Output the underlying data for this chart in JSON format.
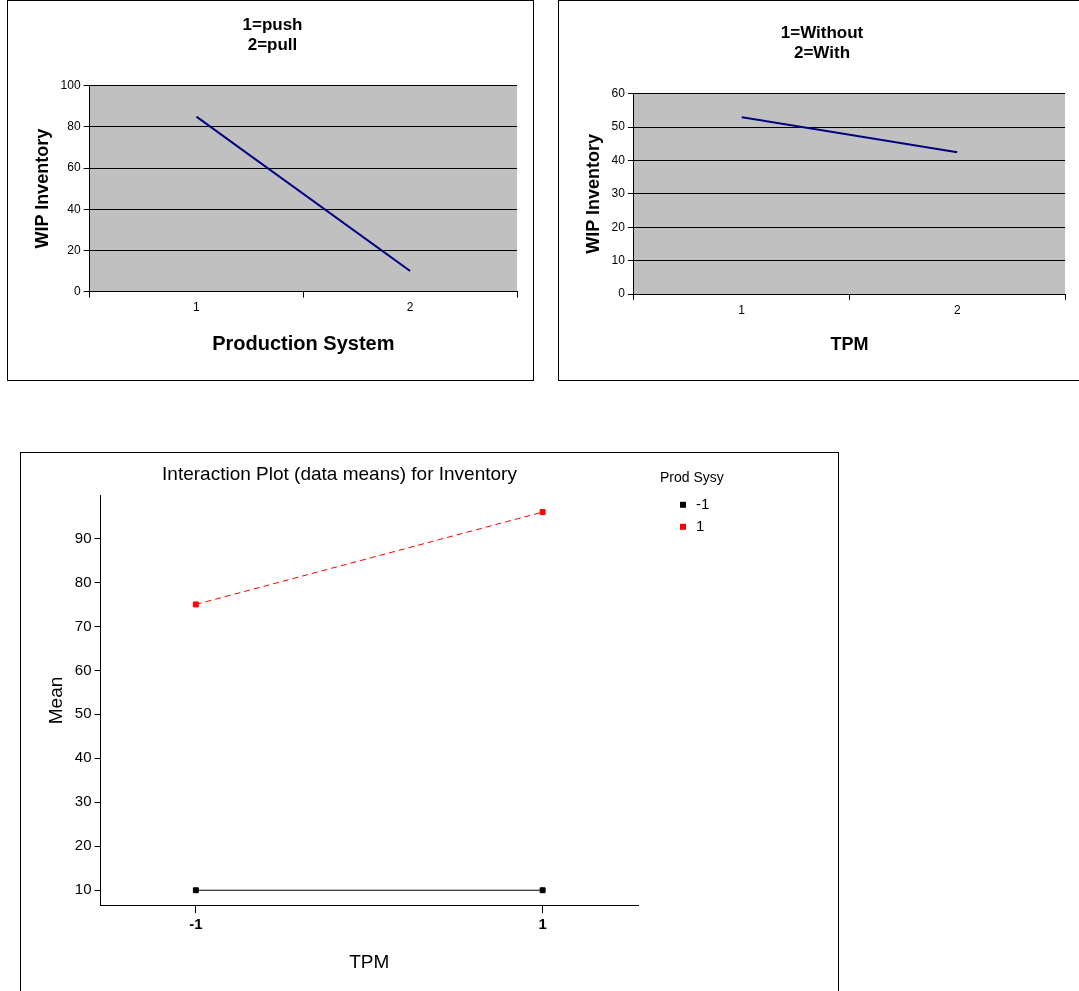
{
  "chart_data": [
    {
      "type": "line",
      "title": "1=push\n2=pull",
      "xlabel": "Production System",
      "ylabel": "WIP Inventory",
      "categories": [
        "1",
        "2"
      ],
      "series": [
        {
          "color": "#000080",
          "values": [
            85,
            10
          ]
        }
      ],
      "ylim": [
        0,
        100
      ],
      "yticks": [
        0,
        20,
        40,
        60,
        80,
        100
      ],
      "grid": "y",
      "legend": false,
      "marker": "none",
      "line_style": "solid"
    },
    {
      "type": "line",
      "title": "1=Without\n2=With",
      "xlabel": "TPM",
      "ylabel": "WIP Inventory",
      "categories": [
        "1",
        "2"
      ],
      "series": [
        {
          "color": "#000080",
          "values": [
            53,
            42.5
          ]
        }
      ],
      "ylim": [
        0,
        60
      ],
      "yticks": [
        0,
        10,
        20,
        30,
        40,
        50,
        60
      ],
      "grid": "y",
      "legend": false,
      "marker": "none",
      "line_style": "solid"
    },
    {
      "type": "line",
      "title": "Interaction Plot (data means) for Inventory",
      "xlabel": "TPM",
      "ylabel": "Mean",
      "legend_title": "Prod Sysy",
      "x": [
        -1,
        1
      ],
      "series": [
        {
          "name": "-1",
          "color": "#000000",
          "values": [
            10,
            10
          ],
          "line_style": "solid"
        },
        {
          "name": "1",
          "color": "#ff0000",
          "values": [
            75,
            96
          ],
          "line_style": "dashed"
        }
      ],
      "xlim": [
        -1.55,
        1.55
      ],
      "xticks": [
        -1,
        1
      ],
      "ylim": [
        6.6,
        99.7
      ],
      "yticks": [
        10,
        20,
        30,
        40,
        50,
        60,
        70,
        80,
        90
      ],
      "grid": false,
      "legend": "right",
      "marker": "square"
    }
  ]
}
